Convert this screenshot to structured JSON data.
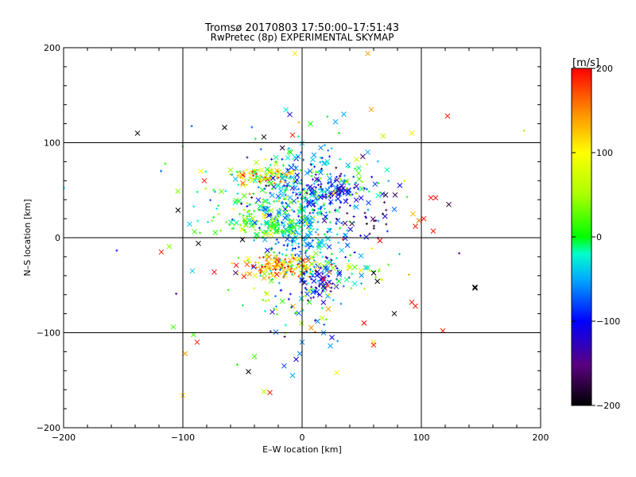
{
  "chart_data": {
    "type": "scatter",
    "title": "Tromsø 20170803 17:50:00–17:51:43",
    "subtitle": "RwPretec (8p) EXPERIMENTAL SKYMAP",
    "xlabel": "E–W location [km]",
    "ylabel": "N–S location [km]",
    "xlim": [
      -200,
      200
    ],
    "ylim": [
      -200,
      200
    ],
    "xticks": [
      -200,
      -100,
      0,
      100,
      200
    ],
    "yticks": [
      -200,
      -100,
      0,
      100,
      200
    ],
    "xtick_labels": [
      "−200",
      "−100",
      "0",
      "100",
      "200"
    ],
    "ytick_labels": [
      "−200",
      "−100",
      "0",
      "100",
      "200"
    ],
    "grid": true,
    "colorbar": {
      "label": "[m/s]",
      "range": [
        -200,
        200
      ],
      "ticks": [
        200,
        100,
        0,
        -100,
        -200
      ],
      "tick_labels": [
        "200",
        "100",
        "0",
        "−100",
        "−200"
      ],
      "colormap": "rainbow (black-purple-blue-cyan-green-yellow-red)"
    },
    "markers": {
      "large": "x",
      "small": "+"
    },
    "clusters": [
      {
        "cx": 0,
        "cy": 15,
        "sx": 18,
        "sy": 38,
        "n": 420,
        "v": -50,
        "vs": 35
      },
      {
        "cx": -30,
        "cy": 15,
        "sx": 22,
        "sy": 8,
        "n": 130,
        "v": 15,
        "vs": 30
      },
      {
        "cx": -30,
        "cy": 65,
        "sx": 13,
        "sy": 4,
        "n": 90,
        "v": 110,
        "vs": 55
      },
      {
        "cx": -18,
        "cy": -32,
        "sx": 18,
        "sy": 6,
        "n": 150,
        "v": 130,
        "vs": 55
      },
      {
        "cx": 28,
        "cy": 50,
        "sx": 18,
        "sy": 8,
        "n": 90,
        "v": -110,
        "vs": 25
      },
      {
        "cx": 55,
        "cy": 18,
        "sx": 14,
        "sy": 12,
        "n": 30,
        "v": -130,
        "vs": 40
      },
      {
        "cx": 15,
        "cy": -45,
        "sx": 8,
        "sy": 12,
        "n": 60,
        "v": -110,
        "vs": 25
      },
      {
        "cx": 40,
        "cy": -35,
        "sx": 15,
        "sy": 8,
        "n": 30,
        "v": 20,
        "vs": 50
      },
      {
        "cx": 10,
        "cy": 65,
        "sx": 30,
        "sy": 10,
        "n": 90,
        "v": -20,
        "vs": 70
      },
      {
        "cx": -35,
        "cy": 40,
        "sx": 25,
        "sy": 12,
        "n": 70,
        "v": 10,
        "vs": 80
      },
      {
        "cx": -10,
        "cy": -70,
        "sx": 25,
        "sy": 15,
        "n": 40,
        "v": -10,
        "vs": 60
      },
      {
        "cx": 0,
        "cy": 0,
        "sx": 60,
        "sy": 70,
        "n": 60,
        "v": 0,
        "vs": 130
      }
    ],
    "points": [
      {
        "x": -138,
        "y": 110,
        "v": -200
      },
      {
        "x": -65,
        "y": 116,
        "v": -200
      },
      {
        "x": -32,
        "y": 106,
        "v": -200
      },
      {
        "x": -8,
        "y": 108,
        "v": 190
      },
      {
        "x": -6,
        "y": 194,
        "v": 110
      },
      {
        "x": 55,
        "y": 194,
        "v": 140
      },
      {
        "x": 58,
        "y": 135,
        "v": 140
      },
      {
        "x": 122,
        "y": 128,
        "v": 190
      },
      {
        "x": 92,
        "y": 110,
        "v": 110
      },
      {
        "x": 68,
        "y": 107,
        "v": 60
      },
      {
        "x": 35,
        "y": 130,
        "v": -50
      },
      {
        "x": 28,
        "y": 122,
        "v": -50
      },
      {
        "x": 55,
        "y": 90,
        "v": -50
      },
      {
        "x": 82,
        "y": 55,
        "v": -100
      },
      {
        "x": 78,
        "y": 45,
        "v": -170
      },
      {
        "x": 70,
        "y": 45,
        "v": -180
      },
      {
        "x": 93,
        "y": 25,
        "v": 130
      },
      {
        "x": 98,
        "y": 18,
        "v": 160
      },
      {
        "x": 108,
        "y": 42,
        "v": 200
      },
      {
        "x": 112,
        "y": 42,
        "v": 200
      },
      {
        "x": 123,
        "y": 35,
        "v": -180
      },
      {
        "x": 102,
        "y": 20,
        "v": 190
      },
      {
        "x": 110,
        "y": 7,
        "v": 190
      },
      {
        "x": 95,
        "y": 12,
        "v": 190
      },
      {
        "x": 145,
        "y": -53,
        "v": -200
      },
      {
        "x": 95,
        "y": -72,
        "v": 190
      },
      {
        "x": 118,
        "y": -98,
        "v": 190
      },
      {
        "x": 60,
        "y": -110,
        "v": 110
      },
      {
        "x": 60,
        "y": -113,
        "v": 190
      },
      {
        "x": 29,
        "y": -142,
        "v": 90
      },
      {
        "x": 25,
        "y": -105,
        "v": -100
      },
      {
        "x": 18,
        "y": -100,
        "v": -60
      },
      {
        "x": 13,
        "y": -88,
        "v": -60
      },
      {
        "x": 0,
        "y": -110,
        "v": -60
      },
      {
        "x": -2,
        "y": -122,
        "v": -60
      },
      {
        "x": -5,
        "y": -128,
        "v": -110
      },
      {
        "x": -15,
        "y": -135,
        "v": -80
      },
      {
        "x": -8,
        "y": -145,
        "v": -50
      },
      {
        "x": -27,
        "y": -163,
        "v": 190
      },
      {
        "x": -32,
        "y": -162,
        "v": 60
      },
      {
        "x": -45,
        "y": -141,
        "v": -200
      },
      {
        "x": -40,
        "y": -125,
        "v": 20
      },
      {
        "x": -100,
        "y": -166,
        "v": 120
      },
      {
        "x": -98,
        "y": -122,
        "v": 140
      },
      {
        "x": -88,
        "y": -110,
        "v": 190
      },
      {
        "x": -91,
        "y": -102,
        "v": 20
      },
      {
        "x": -108,
        "y": -94,
        "v": 20
      },
      {
        "x": -118,
        "y": -15,
        "v": 190
      },
      {
        "x": -104,
        "y": 29,
        "v": -200
      },
      {
        "x": -92,
        "y": -35,
        "v": -40
      },
      {
        "x": -87,
        "y": -6,
        "v": -200
      },
      {
        "x": -50,
        "y": -2,
        "v": -200
      },
      {
        "x": -82,
        "y": 60,
        "v": 190
      },
      {
        "x": -85,
        "y": 70,
        "v": 100
      },
      {
        "x": 60,
        "y": -37,
        "v": -200
      },
      {
        "x": 22,
        "y": -75,
        "v": 140
      },
      {
        "x": 92,
        "y": -68,
        "v": 190
      },
      {
        "x": 145,
        "y": -52,
        "v": -200
      }
    ]
  }
}
